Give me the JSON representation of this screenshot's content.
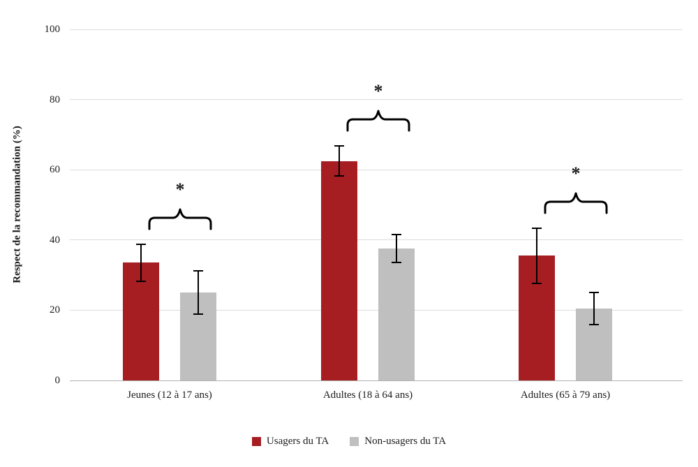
{
  "chart_data": {
    "type": "bar",
    "title": "",
    "xlabel": "",
    "ylabel": "Respect de la recommandation (%)",
    "ylim": [
      0,
      100
    ],
    "yticks": [
      0,
      20,
      40,
      60,
      80,
      100
    ],
    "grid": true,
    "legend_position": "bottom",
    "categories": [
      "Jeunes (12 à 17 ans)",
      "Adultes (18 à 64 ans)",
      "Adultes (65 à 79 ans)"
    ],
    "series": [
      {
        "name": "Usagers du TA",
        "color": "#a61e22",
        "values": [
          33.5,
          62.5,
          35.5
        ],
        "errors": [
          5.2,
          4.3,
          7.8
        ]
      },
      {
        "name": "Non-usagers du TA",
        "color": "#bfbfbf",
        "values": [
          25.0,
          37.5,
          20.5
        ],
        "errors": [
          6.2,
          4.0,
          4.6
        ]
      }
    ],
    "significance": [
      {
        "group": 0,
        "label": "*"
      },
      {
        "group": 1,
        "label": "*"
      },
      {
        "group": 2,
        "label": "*"
      }
    ]
  },
  "colors": {
    "grid": "#dcdcdc",
    "axis_line": "#b3b3b3",
    "error_bar": "#000000",
    "text": "#1a1a1a"
  }
}
